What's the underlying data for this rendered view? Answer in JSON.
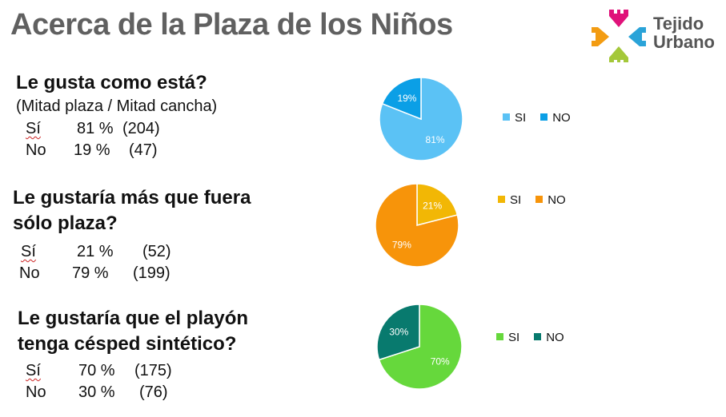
{
  "title": "Acerca de la Plaza de los Niños",
  "logo": {
    "line1": "Tejido",
    "line2": "Urbano",
    "colors": [
      "#e0127a",
      "#f39c12",
      "#2aa3d8",
      "#a4c83a"
    ]
  },
  "questions": [
    {
      "question_line1": "Le gusta como está?",
      "question_line2": "",
      "note": "(Mitad plaza / Mitad cancha)",
      "rows": [
        {
          "label": "Sí",
          "percent": "81 %",
          "count": "(204)"
        },
        {
          "label": "No",
          "percent": "19 %",
          "count": "(47)"
        }
      ]
    },
    {
      "question_line1": "Le gustaría más que fuera",
      "question_line2": "sólo plaza?",
      "note": "",
      "rows": [
        {
          "label": "Sí",
          "percent": "21 %",
          "count": "(52)"
        },
        {
          "label": "No",
          "percent": "79 %",
          "count": "(199)"
        }
      ]
    },
    {
      "question_line1": "Le gustaría que el playón",
      "question_line2": "tenga césped sintético?",
      "note": "",
      "rows": [
        {
          "label": "Sí",
          "percent": "70 %",
          "count": "(175)"
        },
        {
          "label": "No",
          "percent": "30 %",
          "count": "(76)"
        }
      ]
    }
  ],
  "chart_data": [
    {
      "type": "pie",
      "categories": [
        "SI",
        "NO"
      ],
      "values": [
        81,
        19
      ],
      "labels": [
        "81%",
        "19%"
      ],
      "colors": [
        "#5bc2f5",
        "#0b9fe6"
      ],
      "legend": [
        "SI",
        "NO"
      ]
    },
    {
      "type": "pie",
      "categories": [
        "SI",
        "NO"
      ],
      "values": [
        21,
        79
      ],
      "labels": [
        "21%",
        "79%"
      ],
      "colors": [
        "#f2b705",
        "#f7940a"
      ],
      "legend": [
        "SI",
        "NO"
      ]
    },
    {
      "type": "pie",
      "categories": [
        "SI",
        "NO"
      ],
      "values": [
        70,
        30
      ],
      "labels": [
        "70%",
        "30%"
      ],
      "colors": [
        "#66d83c",
        "#087a6e"
      ],
      "legend": [
        "SI",
        "NO"
      ]
    }
  ]
}
